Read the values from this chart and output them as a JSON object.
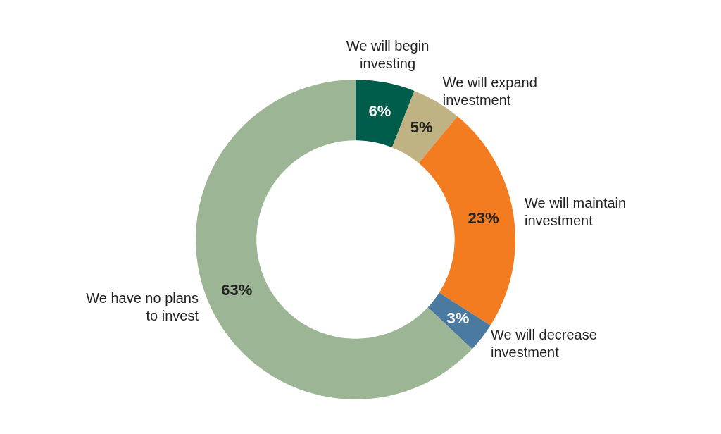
{
  "chart_data": {
    "type": "donut",
    "categories": [
      "We will begin investing",
      "We will expand investment",
      "We will maintain investment",
      "We will decrease investment",
      "We have no plans to invest"
    ],
    "values": [
      6,
      5,
      23,
      3,
      63
    ],
    "colors": [
      "#005c4b",
      "#bfb283",
      "#f47c20",
      "#4a7aa0",
      "#9cb594"
    ],
    "value_labels": [
      "6%",
      "5%",
      "23%",
      "3%",
      "63%"
    ],
    "legend": false
  }
}
